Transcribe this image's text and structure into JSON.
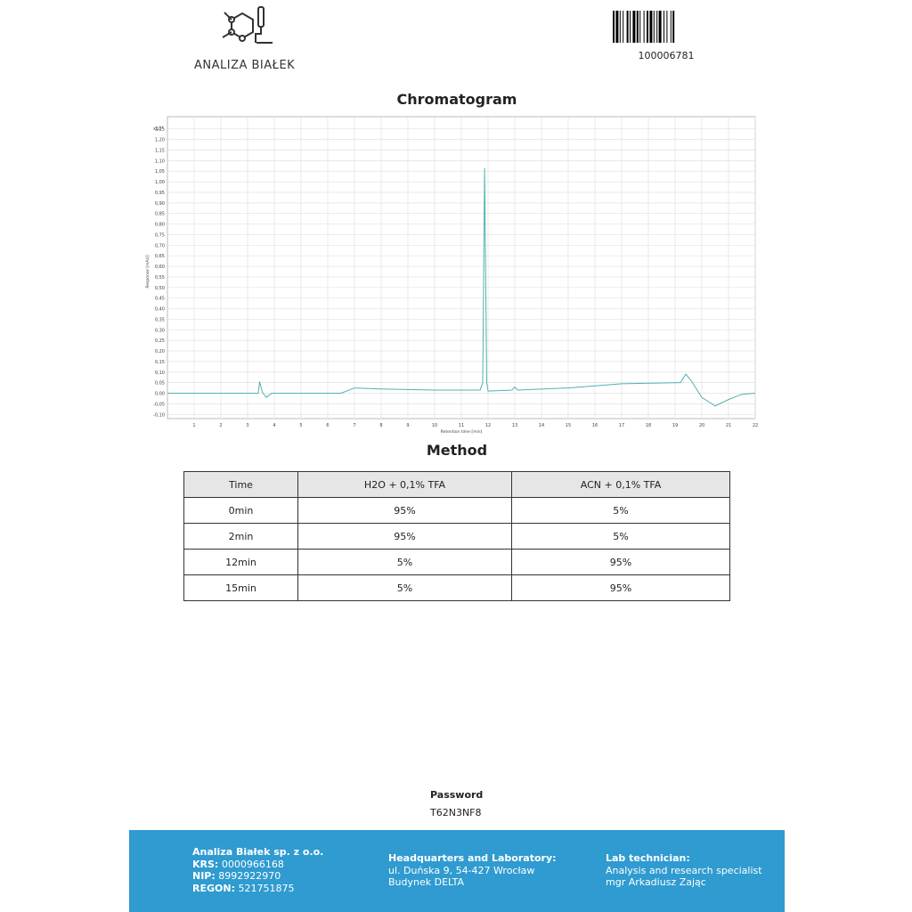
{
  "header": {
    "company": "ANALIZA BIAŁEK",
    "barcode_number": "100006781"
  },
  "chart_data": {
    "type": "line",
    "title": "Chromatogram",
    "multiplier": "x10³",
    "x_label": "Retention time [min]",
    "y_label": "Response [mAU]",
    "x": [
      0,
      3.4,
      3.45,
      3.55,
      3.7,
      3.9,
      6.5,
      7,
      8,
      10,
      11.7,
      11.8,
      11.87,
      11.95,
      12.0,
      12.9,
      13.0,
      13.1,
      15,
      17,
      19.2,
      19.4,
      19.6,
      20,
      20.5,
      21,
      21.5,
      22
    ],
    "series": [
      {
        "name": "Signal",
        "color": "#4fb3b0",
        "values": [
          0,
          0,
          0.055,
          0.005,
          -0.02,
          0,
          0,
          0.025,
          0.02,
          0.015,
          0.015,
          0.05,
          1.064,
          0.05,
          0.01,
          0.015,
          0.03,
          0.015,
          0.025,
          0.045,
          0.05,
          0.09,
          0.06,
          -0.02,
          -0.06,
          -0.03,
          -0.005,
          0
        ]
      }
    ],
    "xlim": [
      0,
      22
    ],
    "ylim": [
      -0.12,
      1.27
    ],
    "xticks": [
      1,
      2,
      3,
      4,
      5,
      6,
      7,
      8,
      9,
      10,
      11,
      12,
      13,
      14,
      15,
      16,
      17,
      18,
      19,
      20,
      21,
      22
    ],
    "yticks": [
      {
        "value": -0.1,
        "label": "-0,10"
      },
      {
        "value": -0.05,
        "label": "-0,05"
      },
      {
        "value": 0,
        "label": "0,00"
      },
      {
        "value": 0.05,
        "label": "0,05"
      },
      {
        "value": 0.1,
        "label": "0,10"
      },
      {
        "value": 0.15,
        "label": "0,15"
      },
      {
        "value": 0.2,
        "label": "0,20"
      },
      {
        "value": 0.25,
        "label": "0,25"
      },
      {
        "value": 0.3,
        "label": "0,30"
      },
      {
        "value": 0.35,
        "label": "0,35"
      },
      {
        "value": 0.4,
        "label": "0,40"
      },
      {
        "value": 0.45,
        "label": "0,45"
      },
      {
        "value": 0.5,
        "label": "0,50"
      },
      {
        "value": 0.55,
        "label": "0,55"
      },
      {
        "value": 0.6,
        "label": "0,60"
      },
      {
        "value": 0.65,
        "label": "0,65"
      },
      {
        "value": 0.7,
        "label": "0,70"
      },
      {
        "value": 0.75,
        "label": "0,75"
      },
      {
        "value": 0.8,
        "label": "0,80"
      },
      {
        "value": 0.85,
        "label": "0,85"
      },
      {
        "value": 0.9,
        "label": "0,90"
      },
      {
        "value": 0.95,
        "label": "0,95"
      },
      {
        "value": 1.0,
        "label": "1,00"
      },
      {
        "value": 1.05,
        "label": "1,05"
      },
      {
        "value": 1.1,
        "label": "1,10"
      },
      {
        "value": 1.15,
        "label": "1,15"
      },
      {
        "value": 1.2,
        "label": "1,20"
      },
      {
        "value": 1.25,
        "label": "1,25"
      }
    ],
    "grid": true
  },
  "method": {
    "title": "Method",
    "table": {
      "header": [
        "Time",
        "H2O + 0,1% TFA",
        "ACN + 0,1% TFA"
      ],
      "rows": [
        [
          "0min",
          "95%",
          "5%"
        ],
        [
          "2min",
          "95%",
          "5%"
        ],
        [
          "12min",
          "5%",
          "95%"
        ],
        [
          "15min",
          "5%",
          "95%"
        ]
      ]
    }
  },
  "password": {
    "label": "Password",
    "value": "T62N3NF8"
  },
  "footer": {
    "company": {
      "name": "Analiza Białek sp. z o.o.",
      "fields": [
        {
          "label": "KRS:",
          "value": "0000966168"
        },
        {
          "label": "NIP:",
          "value": "8992922970"
        },
        {
          "label": "REGON:",
          "value": "521751875"
        }
      ]
    },
    "hq": {
      "title": "Headquarters and Laboratory:",
      "lines": [
        "ul. Duńska 9, 54-427 Wrocław",
        "Budynek DELTA"
      ]
    },
    "lab": {
      "title": "Lab technician:",
      "lines": [
        "Analysis and research specialist",
        "mgr Arkadiusz Zając"
      ]
    }
  }
}
